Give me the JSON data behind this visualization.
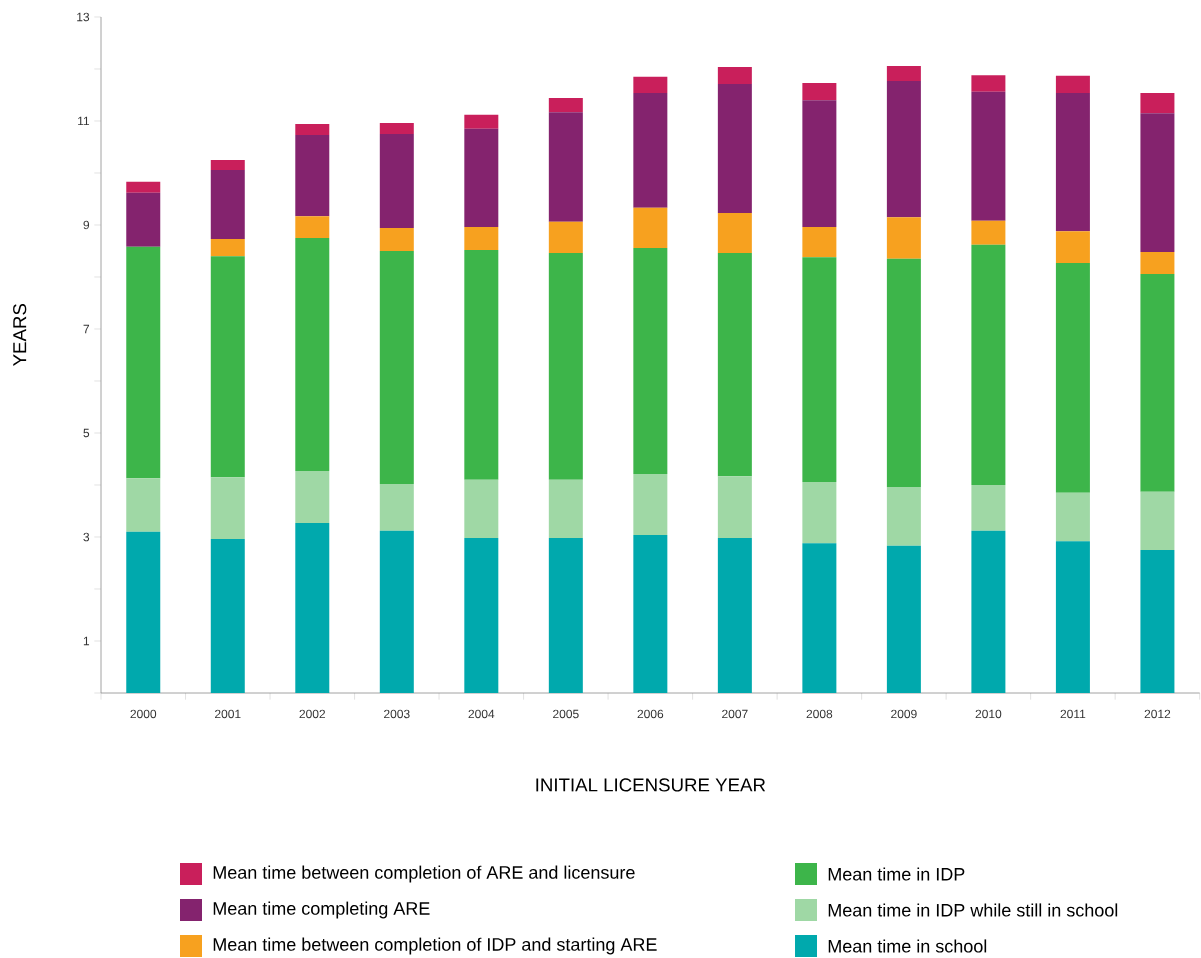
{
  "chart_data": {
    "type": "bar",
    "stacked": true,
    "xlabel": "INITIAL LICENSURE YEAR",
    "ylabel": "YEARS",
    "categories": [
      "2000",
      "2001",
      "2002",
      "2003",
      "2004",
      "2005",
      "2006",
      "2007",
      "2008",
      "2009",
      "2010",
      "2011",
      "2012"
    ],
    "ylim": [
      0,
      13
    ],
    "yticks": [
      {
        "value": 0,
        "label": null
      },
      1,
      {
        "value": 2,
        "label": null
      },
      3,
      {
        "value": 4,
        "label": null
      },
      5,
      {
        "value": 6,
        "label": null
      },
      7,
      {
        "value": 8,
        "label": null
      },
      9,
      {
        "value": 10,
        "label": null
      },
      11,
      {
        "value": 12,
        "label": null
      },
      13
    ],
    "legend": "bottom",
    "series": [
      {
        "name": "Mean time in school",
        "color": "#00a9ad",
        "values": [
          3.1,
          2.96,
          3.27,
          3.12,
          2.98,
          2.98,
          3.04,
          2.98,
          2.88,
          2.83,
          3.12,
          2.92,
          2.75
        ]
      },
      {
        "name": "Mean time in IDP while still in school",
        "color": "#9fd8a5",
        "values": [
          1.03,
          1.19,
          1.0,
          0.9,
          1.12,
          1.12,
          1.17,
          1.19,
          1.18,
          1.13,
          0.88,
          0.93,
          1.12
        ]
      },
      {
        "name": "Mean time in IDP",
        "color": "#3db54a",
        "values": [
          4.45,
          4.25,
          4.48,
          4.48,
          4.42,
          4.36,
          4.35,
          4.29,
          4.32,
          4.39,
          4.62,
          4.42,
          4.19
        ]
      },
      {
        "name": "Mean time between completion of IDP and starting ARE",
        "color": "#f7a11f",
        "values": [
          0,
          0.33,
          0.42,
          0.44,
          0.44,
          0.6,
          0.77,
          0.77,
          0.58,
          0.8,
          0.46,
          0.61,
          0.42
        ]
      },
      {
        "name": "Mean time completing ARE",
        "color": "#84236e",
        "values": [
          1.04,
          1.33,
          1.56,
          1.81,
          1.89,
          2.11,
          2.21,
          2.48,
          2.44,
          2.62,
          2.48,
          2.66,
          2.67
        ]
      },
      {
        "name": "Mean time between completion of ARE and licensure",
        "color": "#c91f5b",
        "values": [
          0.21,
          0.19,
          0.21,
          0.21,
          0.27,
          0.27,
          0.31,
          0.33,
          0.33,
          0.29,
          0.32,
          0.33,
          0.39
        ]
      }
    ]
  }
}
